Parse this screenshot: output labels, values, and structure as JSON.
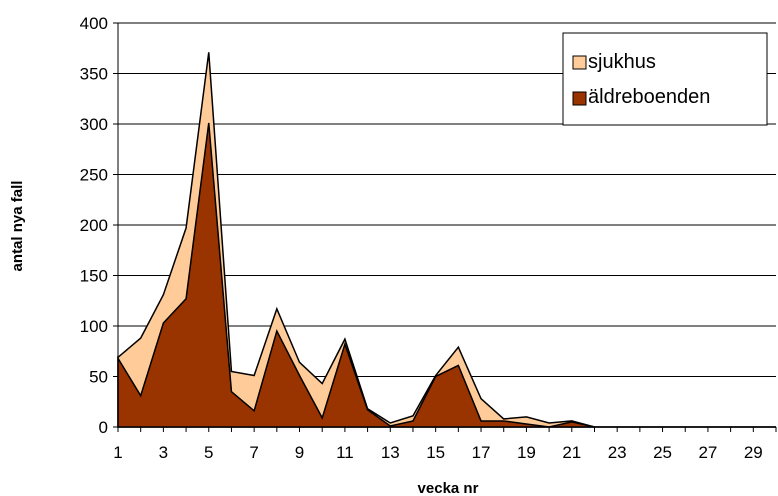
{
  "chart_data": {
    "type": "area",
    "xlabel": "vecka nr",
    "ylabel": "antal nya fall",
    "xlim": [
      1,
      30
    ],
    "ylim": [
      0,
      400
    ],
    "yticks": [
      0,
      50,
      100,
      150,
      200,
      250,
      300,
      350,
      400
    ],
    "xticks": [
      1,
      3,
      5,
      7,
      9,
      11,
      13,
      15,
      17,
      19,
      21,
      23,
      25,
      27,
      29
    ],
    "x": [
      1,
      2,
      3,
      4,
      5,
      6,
      7,
      8,
      9,
      10,
      11,
      12,
      13,
      14,
      15,
      16,
      17,
      18,
      19,
      20,
      21,
      22,
      23,
      24,
      25,
      26,
      27,
      28,
      29,
      30
    ],
    "series": [
      {
        "name": "sjukhus",
        "color": "#ffcc99",
        "values": [
          1,
          57,
          28,
          70,
          70,
          20,
          35,
          22,
          13,
          34,
          5,
          1,
          3,
          5,
          1,
          18,
          22,
          2,
          7,
          4,
          1,
          0,
          0,
          0,
          0,
          0,
          0,
          0,
          0,
          0
        ]
      },
      {
        "name": "äldreboenden",
        "color": "#993300",
        "values": [
          68,
          31,
          103,
          127,
          301,
          35,
          16,
          95,
          51,
          9,
          82,
          17,
          1,
          6,
          50,
          61,
          6,
          6,
          3,
          0,
          5,
          0,
          0,
          0,
          0,
          0,
          0,
          0,
          0,
          0
        ]
      }
    ],
    "legend_position": "top-right",
    "grid": "horizontal"
  }
}
